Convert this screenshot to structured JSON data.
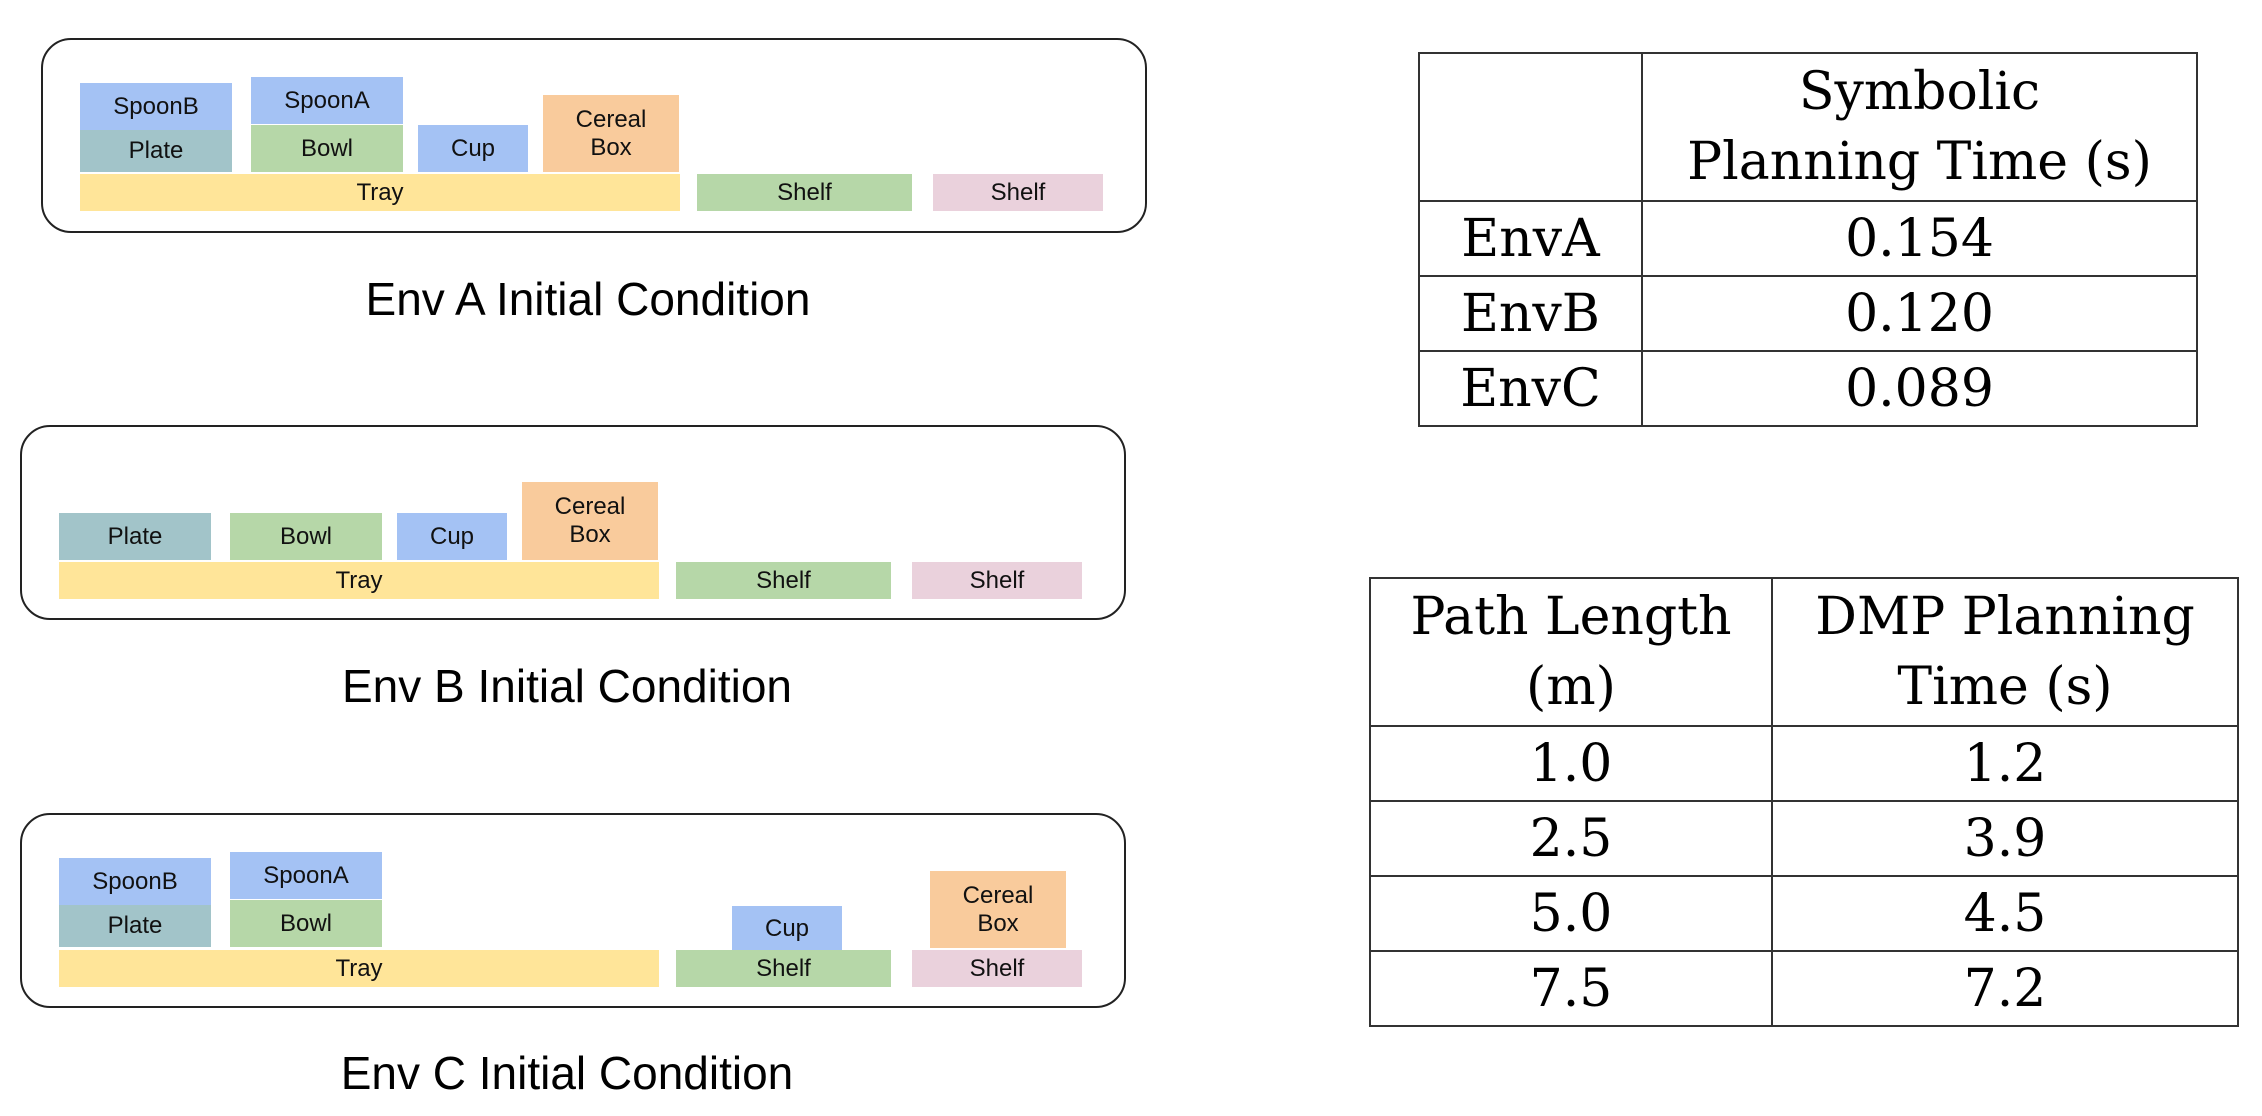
{
  "colors": {
    "blue": "#a4c2f4",
    "teal": "#a2c4c9",
    "green": "#b6d7a8",
    "orange": "#f9cb9c",
    "yellow": "#ffe599",
    "pink": "#ead1dc"
  },
  "environments": [
    {
      "caption": "Env A Initial Condition",
      "objects": [
        {
          "label": "SpoonB",
          "color": "blue"
        },
        {
          "label": "Plate",
          "color": "teal"
        },
        {
          "label": "SpoonA",
          "color": "blue"
        },
        {
          "label": "Bowl",
          "color": "green"
        },
        {
          "label": "Cup",
          "color": "blue"
        },
        {
          "label": "Cereal\nBox",
          "color": "orange"
        },
        {
          "label": "Tray",
          "color": "yellow"
        },
        {
          "label": "Shelf",
          "color": "green"
        },
        {
          "label": "Shelf",
          "color": "pink"
        }
      ]
    },
    {
      "caption": "Env B Initial Condition",
      "objects": [
        {
          "label": "Plate",
          "color": "teal"
        },
        {
          "label": "Bowl",
          "color": "green"
        },
        {
          "label": "Cup",
          "color": "blue"
        },
        {
          "label": "Cereal\nBox",
          "color": "orange"
        },
        {
          "label": "Tray",
          "color": "yellow"
        },
        {
          "label": "Shelf",
          "color": "green"
        },
        {
          "label": "Shelf",
          "color": "pink"
        }
      ]
    },
    {
      "caption": "Env C Initial Condition",
      "objects": [
        {
          "label": "SpoonB",
          "color": "blue"
        },
        {
          "label": "Plate",
          "color": "teal"
        },
        {
          "label": "SpoonA",
          "color": "blue"
        },
        {
          "label": "Bowl",
          "color": "green"
        },
        {
          "label": "Cup",
          "color": "blue"
        },
        {
          "label": "Cereal\nBox",
          "color": "orange"
        },
        {
          "label": "Tray",
          "color": "yellow"
        },
        {
          "label": "Shelf",
          "color": "green"
        },
        {
          "label": "Shelf",
          "color": "pink"
        }
      ]
    }
  ],
  "symbolic_table": {
    "header": [
      "",
      "Symbolic\nPlanning Time (s)"
    ],
    "rows": [
      [
        "EnvA",
        "0.154"
      ],
      [
        "EnvB",
        "0.120"
      ],
      [
        "EnvC",
        "0.089"
      ]
    ]
  },
  "dmp_table": {
    "header": [
      "Path Length\n(m)",
      "DMP Planning\nTime (s)"
    ],
    "rows": [
      [
        "1.0",
        "1.2"
      ],
      [
        "2.5",
        "3.9"
      ],
      [
        "5.0",
        "4.5"
      ],
      [
        "7.5",
        "7.2"
      ]
    ]
  }
}
